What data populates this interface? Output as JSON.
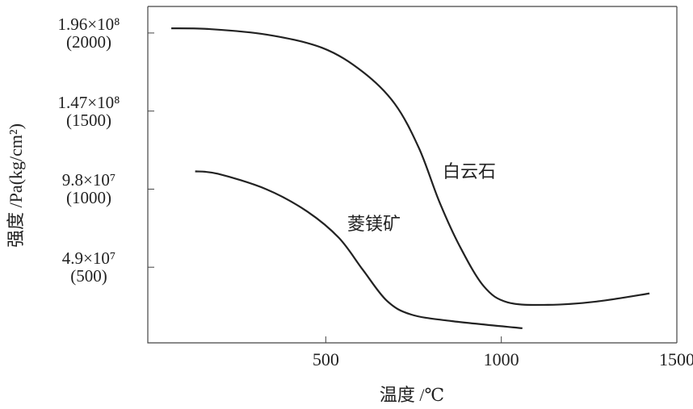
{
  "chart_data": {
    "type": "line",
    "x_label": "温度 /℃",
    "y_label": "强度 /Pa(kg/cm²)",
    "xlim": [
      0,
      1500
    ],
    "xticks": [
      500,
      1000,
      1500
    ],
    "ylim": [
      0,
      2170
    ],
    "yticks": [
      {
        "value": 500,
        "label": "4.9×10⁷\n(500)"
      },
      {
        "value": 1000,
        "label": "9.8×10⁷\n(1000)"
      },
      {
        "value": 1500,
        "label": "1.47×10⁸\n(1500)"
      },
      {
        "value": 2000,
        "label": "1.96×10⁸\n(2000)"
      }
    ],
    "series": [
      {
        "name": "白云石",
        "color": "#222222",
        "x": [
          60,
          170,
          330,
          490,
          606,
          697,
          766,
          823,
          881,
          950,
          1018,
          1133,
          1271,
          1422
        ],
        "values": [
          2030,
          2025,
          1990,
          1905,
          1750,
          1545,
          1260,
          922,
          637,
          378,
          275,
          259,
          280,
          332
        ]
      },
      {
        "name": "菱镁矿",
        "color": "#222222",
        "x": [
          128,
          193,
          330,
          445,
          537,
          606,
          674,
          743,
          858,
          1060
        ],
        "values": [
          1114,
          1098,
          1000,
          860,
          689,
          482,
          285,
          197,
          155,
          109
        ]
      }
    ]
  }
}
